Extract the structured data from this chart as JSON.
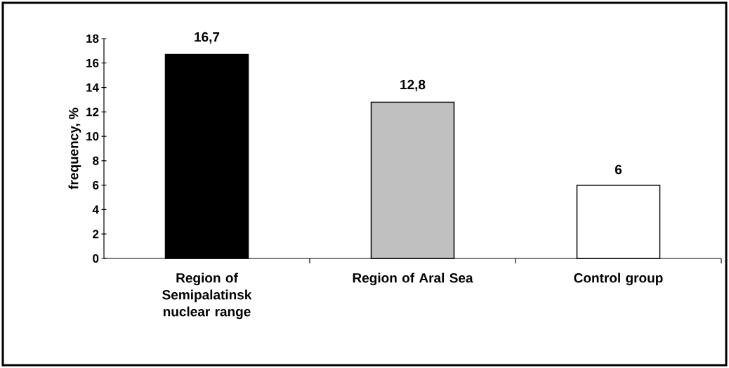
{
  "chart_data": {
    "type": "bar",
    "ylabel": "frequency, %",
    "categories": [
      "Region of Semipalatinsk nuclear range",
      "Region of Aral Sea",
      "Control group"
    ],
    "values": [
      16.7,
      12.8,
      6
    ],
    "colors": [
      "#000000",
      "#c0c0c0",
      "#ffffff"
    ],
    "value_labels": [
      "16,7",
      "12,8",
      "6"
    ],
    "ylim": [
      0,
      18
    ],
    "yticks": [
      0,
      2,
      4,
      6,
      8,
      10,
      12,
      14,
      16,
      18
    ],
    "grid": false
  }
}
